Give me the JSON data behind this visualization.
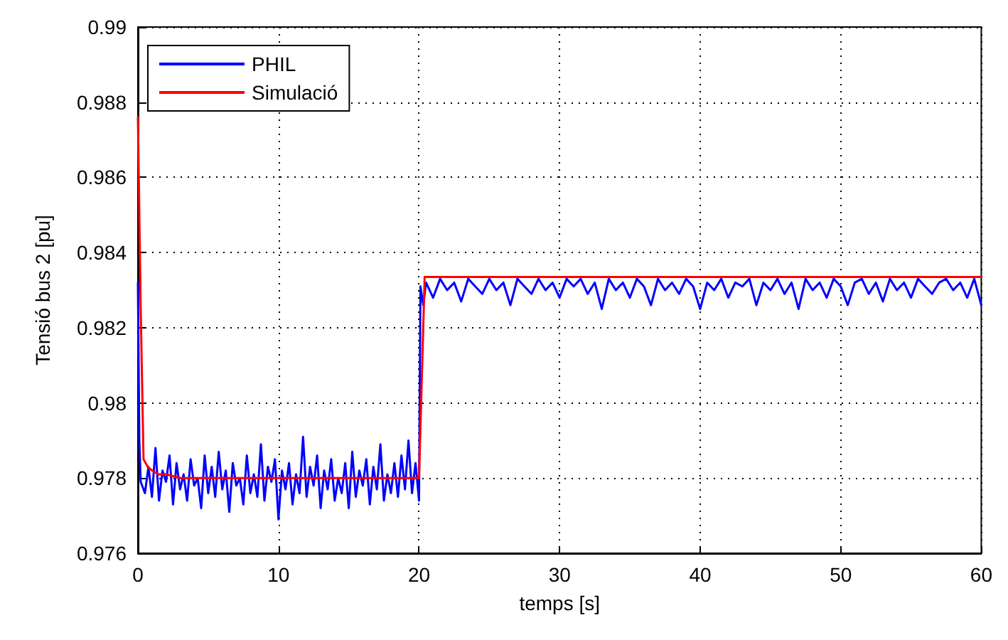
{
  "chart_data": {
    "type": "line",
    "xlabel": "temps [s]",
    "ylabel": "Tensió bus 2 [pu]",
    "xlim": [
      0,
      60
    ],
    "xticks": [
      0,
      10,
      20,
      30,
      40,
      50,
      60
    ],
    "ylim": [
      0.976,
      0.99
    ],
    "yticks": [
      0.976,
      0.978,
      0.98,
      0.982,
      0.984,
      0.986,
      0.988,
      0.99
    ],
    "grid": true,
    "legend": "top left",
    "line_style": "solid",
    "marker": "none",
    "series": [
      {
        "name": "PHIL",
        "color": "#0000ff",
        "x": [
          0,
          0.1,
          0.2,
          0.5,
          0.75,
          1,
          1.25,
          1.5,
          1.75,
          2,
          2.25,
          2.5,
          2.75,
          3,
          3.25,
          3.5,
          3.75,
          4,
          4.25,
          4.5,
          4.75,
          5,
          5.25,
          5.5,
          5.75,
          6,
          6.25,
          6.5,
          6.75,
          7,
          7.25,
          7.5,
          7.75,
          8,
          8.25,
          8.5,
          8.75,
          9,
          9.25,
          9.5,
          9.75,
          10,
          10.25,
          10.5,
          10.75,
          11,
          11.25,
          11.5,
          11.75,
          12,
          12.25,
          12.5,
          12.75,
          13,
          13.25,
          13.5,
          13.75,
          14,
          14.25,
          14.5,
          14.75,
          15,
          15.25,
          15.5,
          15.75,
          16,
          16.25,
          16.5,
          16.75,
          17,
          17.25,
          17.5,
          17.75,
          18,
          18.25,
          18.5,
          18.75,
          19,
          19.25,
          19.5,
          19.75,
          20,
          20.1,
          20.3,
          20.5,
          21,
          21.5,
          22,
          22.5,
          23,
          23.5,
          24,
          24.5,
          25,
          25.5,
          26,
          26.5,
          27,
          27.5,
          28,
          28.5,
          29,
          29.5,
          30,
          30.5,
          31,
          31.5,
          32,
          32.5,
          33,
          33.5,
          34,
          34.5,
          35,
          35.5,
          36,
          36.5,
          37,
          37.5,
          38,
          38.5,
          39,
          39.5,
          40,
          40.5,
          41,
          41.5,
          42,
          42.5,
          43,
          43.5,
          44,
          44.5,
          45,
          45.5,
          46,
          46.5,
          47,
          47.5,
          48,
          48.5,
          49,
          49.5,
          50,
          50.5,
          51,
          51.5,
          52,
          52.5,
          53,
          53.5,
          54,
          54.5,
          55,
          55.5,
          56,
          56.5,
          57,
          57.5,
          58,
          58.5,
          59,
          59.5,
          60
        ],
        "values": [
          0.9832,
          0.979,
          0.9779,
          0.9776,
          0.9783,
          0.9775,
          0.9788,
          0.9774,
          0.9782,
          0.9779,
          0.9786,
          0.9773,
          0.9784,
          0.9777,
          0.9781,
          0.9774,
          0.9785,
          0.9778,
          0.978,
          0.9772,
          0.9786,
          0.9776,
          0.9783,
          0.9775,
          0.9787,
          0.9777,
          0.9782,
          0.9771,
          0.9784,
          0.9778,
          0.978,
          0.9773,
          0.9786,
          0.9776,
          0.9781,
          0.9775,
          0.9789,
          0.9774,
          0.9783,
          0.9779,
          0.9785,
          0.9769,
          0.9782,
          0.9777,
          0.9784,
          0.9773,
          0.9781,
          0.9776,
          0.9791,
          0.9775,
          0.9783,
          0.9778,
          0.9786,
          0.9772,
          0.9782,
          0.9777,
          0.9785,
          0.9774,
          0.978,
          0.9776,
          0.9784,
          0.9772,
          0.9787,
          0.9775,
          0.9782,
          0.9778,
          0.9785,
          0.9773,
          0.9783,
          0.9777,
          0.9789,
          0.9774,
          0.9781,
          0.9776,
          0.9784,
          0.9775,
          0.9786,
          0.9777,
          0.979,
          0.9776,
          0.9784,
          0.9774,
          0.9831,
          0.9826,
          0.9832,
          0.9828,
          0.9833,
          0.983,
          0.9832,
          0.9827,
          0.9833,
          0.9831,
          0.9829,
          0.9833,
          0.983,
          0.9832,
          0.9826,
          0.9833,
          0.9831,
          0.9829,
          0.9833,
          0.983,
          0.9832,
          0.9828,
          0.9833,
          0.9831,
          0.9833,
          0.9829,
          0.9832,
          0.9825,
          0.9833,
          0.983,
          0.9832,
          0.9828,
          0.9833,
          0.9831,
          0.9826,
          0.9833,
          0.983,
          0.9832,
          0.9829,
          0.9833,
          0.9831,
          0.9825,
          0.9832,
          0.983,
          0.9833,
          0.9828,
          0.9832,
          0.9831,
          0.9833,
          0.9826,
          0.9832,
          0.983,
          0.9833,
          0.9829,
          0.9832,
          0.9825,
          0.9833,
          0.983,
          0.9832,
          0.9828,
          0.9833,
          0.9831,
          0.9826,
          0.9832,
          0.9833,
          0.9829,
          0.9832,
          0.9827,
          0.9833,
          0.983,
          0.9832,
          0.9828,
          0.9833,
          0.9831,
          0.9829,
          0.9832,
          0.9833,
          0.983,
          0.9832,
          0.9828,
          0.9833,
          0.9826
        ]
      },
      {
        "name": "Simulació",
        "color": "#ff0000",
        "x": [
          0,
          0.2,
          0.4,
          0.7,
          1,
          1.5,
          2,
          3,
          4,
          6,
          10,
          20,
          20.4,
          60
        ],
        "values": [
          0.9876,
          0.9825,
          0.9785,
          0.9783,
          0.9782,
          0.9781,
          0.9781,
          0.978,
          0.978,
          0.978,
          0.978,
          0.978,
          0.98335,
          0.98335
        ]
      }
    ]
  }
}
